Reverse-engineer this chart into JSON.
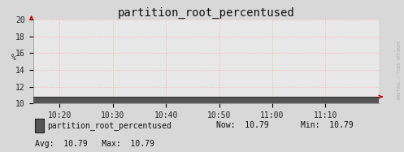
{
  "title": "partition_root_percentused",
  "bg_color": "#d8d8d8",
  "plot_bg_color": "#e8e8e8",
  "grid_color": "#ff9999",
  "line_color": "#222222",
  "fill_color": "#555555",
  "arrow_color": "#cc0000",
  "ylabel": "%",
  "ylim": [
    10,
    20
  ],
  "yticks": [
    10,
    12,
    14,
    16,
    18,
    20
  ],
  "xtick_labels": [
    "10:20",
    "10:30",
    "10:40",
    "10:50",
    "11:00",
    "11:10"
  ],
  "xtick_pos": [
    5,
    15,
    25,
    35,
    45,
    55
  ],
  "xlim": [
    0,
    65
  ],
  "data_value": 10.79,
  "legend_label": "partition_root_percentused",
  "now_val": "10.79",
  "min_val": "10.79",
  "avg_val": "10.79",
  "max_val": "10.79",
  "watermark": "RRDTOOL / TOBI OETIKER",
  "title_fontsize": 10,
  "axis_fontsize": 7,
  "legend_fontsize": 7
}
